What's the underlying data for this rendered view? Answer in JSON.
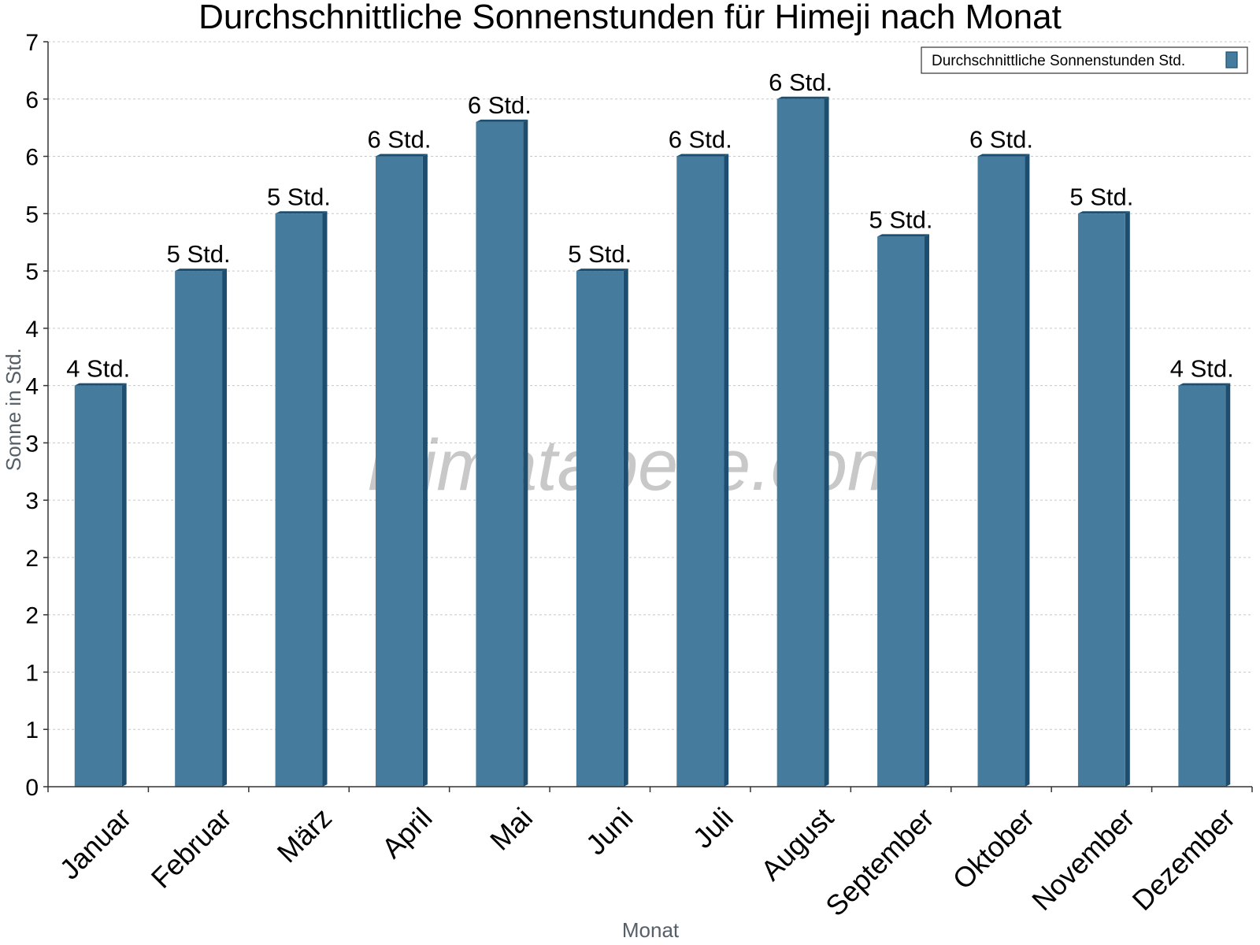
{
  "chart_data": {
    "type": "bar",
    "title": "Durchschnittliche Sonnenstunden für Himeji nach Monat",
    "xlabel": "Monat",
    "ylabel": "Sonne in Std.",
    "ylim": [
      0,
      6.5
    ],
    "y_ticks": [
      {
        "value": 0,
        "label": "0"
      },
      {
        "value": 0.5,
        "label": "1"
      },
      {
        "value": 1,
        "label": "1"
      },
      {
        "value": 1.5,
        "label": "2"
      },
      {
        "value": 2,
        "label": "2"
      },
      {
        "value": 2.5,
        "label": "3"
      },
      {
        "value": 3,
        "label": "3"
      },
      {
        "value": 3.5,
        "label": "4"
      },
      {
        "value": 4,
        "label": "4"
      },
      {
        "value": 4.5,
        "label": "5"
      },
      {
        "value": 5,
        "label": "5"
      },
      {
        "value": 5.5,
        "label": "6"
      },
      {
        "value": 6,
        "label": "6"
      },
      {
        "value": 6.5,
        "label": "7"
      }
    ],
    "grid": true,
    "legend_position": "top-right",
    "categories": [
      "Januar",
      "Februar",
      "März",
      "April",
      "Mai",
      "Juni",
      "Juli",
      "August",
      "September",
      "Oktober",
      "November",
      "Dezember"
    ],
    "series": [
      {
        "name": "Durchschnittliche Sonnenstunden Std.",
        "color": "#457b9d",
        "side_color": "#1d4e6f",
        "values": [
          3.5,
          4.5,
          5.0,
          5.5,
          5.8,
          4.5,
          5.5,
          6.0,
          4.8,
          5.5,
          5.0,
          3.5
        ],
        "labels": [
          "4 Std.",
          "5 Std.",
          "5 Std.",
          "6 Std.",
          "6 Std.",
          "5 Std.",
          "6 Std.",
          "6 Std.",
          "5 Std.",
          "6 Std.",
          "5 Std.",
          "4 Std."
        ]
      }
    ],
    "watermark": "klimatabelle.com"
  }
}
